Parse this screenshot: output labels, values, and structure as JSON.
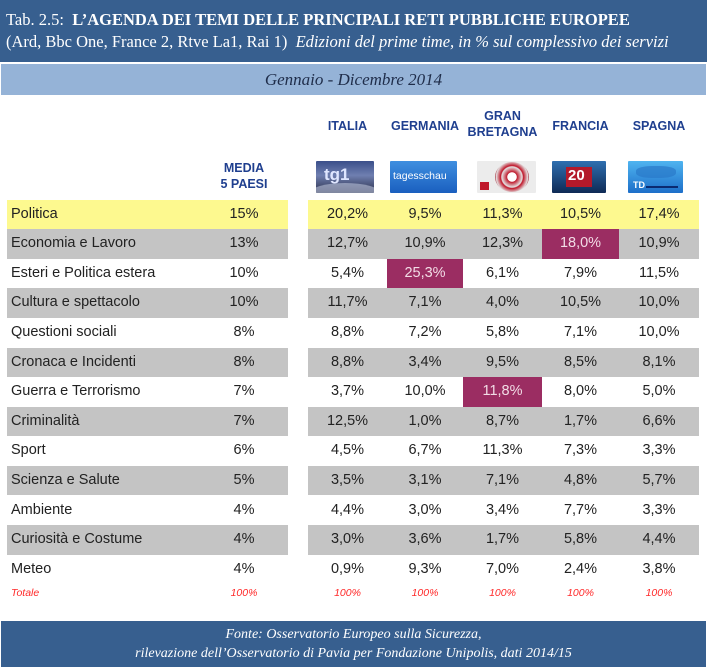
{
  "header": {
    "tab_ref": "Tab. 2.5:",
    "title": "L’AGENDA DEI TEMI DELLE PRINCIPALI RETI PUBBLICHE EUROPEE",
    "networks": "(Ard, Bbc One, France 2, Rtve La1, Rai 1)",
    "subtitle": "Edizioni del prime time, in % sul complessivo dei servizi"
  },
  "period": "Gennaio  - Dicembre 2014",
  "columns": {
    "media_line1": "MEDIA",
    "media_line2": "5 PAESI",
    "countries": [
      {
        "line1": "ITALIA",
        "line2": "",
        "logo": "tg1-logo",
        "logo_text": "tg1"
      },
      {
        "line1": "GERMANIA",
        "line2": "",
        "logo": "tagesschau-logo",
        "logo_text": "tagesschau"
      },
      {
        "line1": "GRAN",
        "line2": "BRETAGNA",
        "logo": "bbc-news-logo",
        "logo_text": ""
      },
      {
        "line1": "FRANCIA",
        "line2": "",
        "logo": "france2-20h-logo",
        "logo_text": "20"
      },
      {
        "line1": "SPAGNA",
        "line2": "",
        "logo": "telediario-logo",
        "logo_text": "TD"
      }
    ]
  },
  "rows": [
    {
      "topic": "Politica",
      "media": "15%",
      "values": [
        "20,2%",
        "9,5%",
        "11,3%",
        "10,5%",
        "17,4%"
      ],
      "style": "yellow",
      "highlight": -1
    },
    {
      "topic": "Economia e Lavoro",
      "media": "13%",
      "values": [
        "12,7%",
        "10,9%",
        "12,3%",
        "18,0%",
        "10,9%"
      ],
      "style": "grey",
      "highlight": 3
    },
    {
      "topic": "Esteri e Politica estera",
      "media": "10%",
      "values": [
        "5,4%",
        "25,3%",
        "6,1%",
        "7,9%",
        "11,5%"
      ],
      "style": "white",
      "highlight": 1
    },
    {
      "topic": "Cultura e spettacolo",
      "media": "10%",
      "values": [
        "11,7%",
        "7,1%",
        "4,0%",
        "10,5%",
        "10,0%"
      ],
      "style": "grey",
      "highlight": -1
    },
    {
      "topic": "Questioni sociali",
      "media": "8%",
      "values": [
        "8,8%",
        "7,2%",
        "5,8%",
        "7,1%",
        "10,0%"
      ],
      "style": "white",
      "highlight": -1
    },
    {
      "topic": "Cronaca e Incidenti",
      "media": "8%",
      "values": [
        "8,8%",
        "3,4%",
        "9,5%",
        "8,5%",
        "8,1%"
      ],
      "style": "grey",
      "highlight": -1
    },
    {
      "topic": "Guerra e Terrorismo",
      "media": "7%",
      "values": [
        "3,7%",
        "10,0%",
        "11,8%",
        "8,0%",
        "5,0%"
      ],
      "style": "white",
      "highlight": 2
    },
    {
      "topic": "Criminalità",
      "media": "7%",
      "values": [
        "12,5%",
        "1,0%",
        "8,7%",
        "1,7%",
        "6,6%"
      ],
      "style": "grey",
      "highlight": -1
    },
    {
      "topic": "Sport",
      "media": "6%",
      "values": [
        "4,5%",
        "6,7%",
        "11,3%",
        "7,3%",
        "3,3%"
      ],
      "style": "white",
      "highlight": -1
    },
    {
      "topic": "Scienza e Salute",
      "media": "5%",
      "values": [
        "3,5%",
        "3,1%",
        "7,1%",
        "4,8%",
        "5,7%"
      ],
      "style": "grey",
      "highlight": -1
    },
    {
      "topic": "Ambiente",
      "media": "4%",
      "values": [
        "4,4%",
        "3,0%",
        "3,4%",
        "7,7%",
        "3,3%"
      ],
      "style": "white",
      "highlight": -1
    },
    {
      "topic": "Curiosità e Costume",
      "media": "4%",
      "values": [
        "3,0%",
        "3,6%",
        "1,7%",
        "5,8%",
        "4,4%"
      ],
      "style": "grey",
      "highlight": -1
    },
    {
      "topic": "Meteo",
      "media": "4%",
      "values": [
        "0,9%",
        "9,3%",
        "7,0%",
        "2,4%",
        "3,8%"
      ],
      "style": "white",
      "highlight": -1
    }
  ],
  "total": {
    "label": "Totale",
    "media": "100%",
    "values": [
      "100%",
      "100%",
      "100%",
      "100%",
      "100%"
    ]
  },
  "colors": {
    "title_band": "#375f8f",
    "period_band": "#95b3d7",
    "yellow_row": "#fdf98f",
    "grey_row": "#c4c4c4",
    "highlight": "#9b2d62",
    "total_text": "#ff2a2a",
    "header_text": "#1f3f8f"
  },
  "footer": {
    "line1": "Fonte: Osservatorio Europeo sulla Sicurezza,",
    "line2": "rilevazione dell’Osservatorio di Pavia per Fondazione Unipolis, dati 2014/15"
  }
}
